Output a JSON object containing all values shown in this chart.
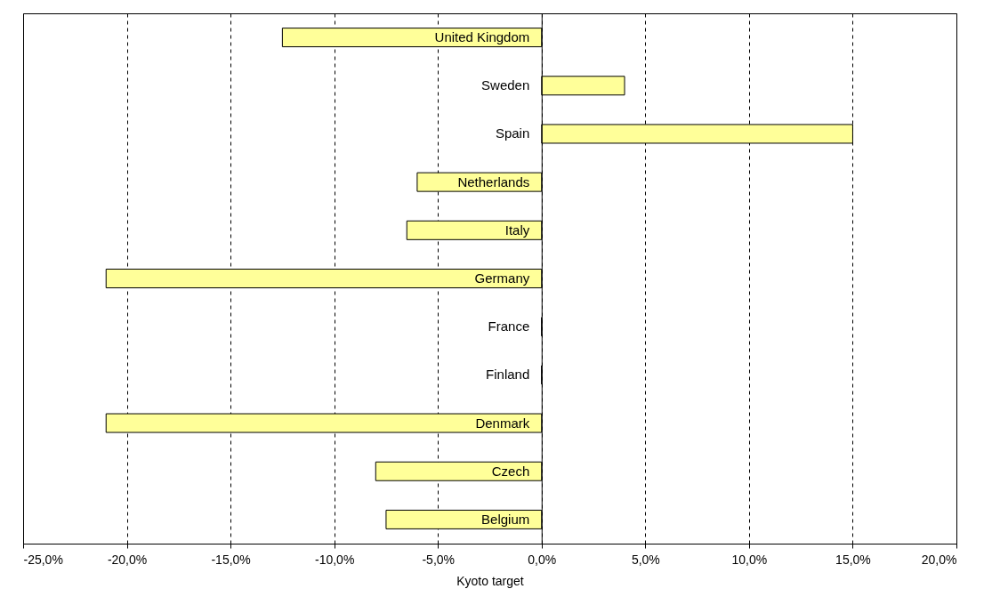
{
  "chart_data": {
    "type": "bar",
    "orientation": "horizontal",
    "xlabel": "Kyoto target",
    "categories": [
      "United Kingdom",
      "Sweden",
      "Spain",
      "Netherlands",
      "Italy",
      "Germany",
      "France",
      "Finland",
      "Denmark",
      "Czech",
      "Belgium"
    ],
    "values": [
      -12.5,
      4,
      15,
      -6,
      -6.5,
      -21,
      0,
      0,
      -21,
      -8,
      -7.5
    ],
    "color": "#ffff99",
    "xlim": [
      -25,
      20
    ],
    "xticks": [
      {
        "value": -25,
        "label": "-25,0%"
      },
      {
        "value": -20,
        "label": "-20,0%"
      },
      {
        "value": -15,
        "label": "-15,0%"
      },
      {
        "value": -10,
        "label": "-10,0%"
      },
      {
        "value": -5,
        "label": "-5,0%"
      },
      {
        "value": 0,
        "label": "0,0%"
      },
      {
        "value": 5,
        "label": "5,0%"
      },
      {
        "value": 10,
        "label": "10,0%"
      },
      {
        "value": 15,
        "label": "15,0%"
      },
      {
        "value": 20,
        "label": "20,0%"
      }
    ],
    "grid": "x",
    "line_style": "dashed"
  }
}
